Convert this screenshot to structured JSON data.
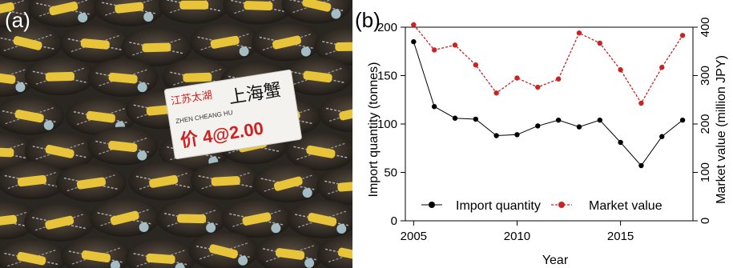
{
  "panels": {
    "photo_label": "(a)",
    "chart_label": "(b)"
  },
  "photo": {
    "sign_line1": "江苏太湖",
    "sign_line2": "上海蟹",
    "sign_line3": "ZHEN CHEANG HU",
    "sign_line4": "价 4@2.00"
  },
  "colors": {
    "import_series": "#000000",
    "market_series": "#cc2222",
    "photo_bg": "#2a2622",
    "tag": "#e8c43a",
    "sign_text_red": "#d02020"
  },
  "chart_data": {
    "type": "line",
    "xlabel": "Year",
    "ylabel_left": "Import quantity (tonnes)",
    "ylabel_right": "Market value (million JPY)",
    "xlim": [
      2004.6,
      2018.5
    ],
    "ylim_left": [
      0,
      200
    ],
    "ylim_right": [
      0,
      400
    ],
    "x_ticks": [
      2005,
      2010,
      2015
    ],
    "y_ticks_left": [
      0,
      50,
      100,
      150,
      200
    ],
    "y_ticks_right": [
      0,
      100,
      200,
      300,
      400
    ],
    "grid": false,
    "legend": "bottom-left",
    "x": [
      2005,
      2006,
      2007,
      2008,
      2009,
      2010,
      2011,
      2012,
      2013,
      2014,
      2015,
      2016,
      2017,
      2018
    ],
    "series": [
      {
        "name": "Import quantity",
        "axis": "left",
        "style": "solid",
        "values": [
          185,
          118,
          106,
          105,
          88,
          89,
          98,
          104,
          97,
          104,
          81,
          57,
          87,
          104
        ]
      },
      {
        "name": "Market value",
        "axis": "right",
        "style": "dashed",
        "values": [
          405,
          353,
          363,
          322,
          264,
          295,
          276,
          293,
          388,
          367,
          312,
          243,
          317,
          383
        ]
      }
    ]
  }
}
